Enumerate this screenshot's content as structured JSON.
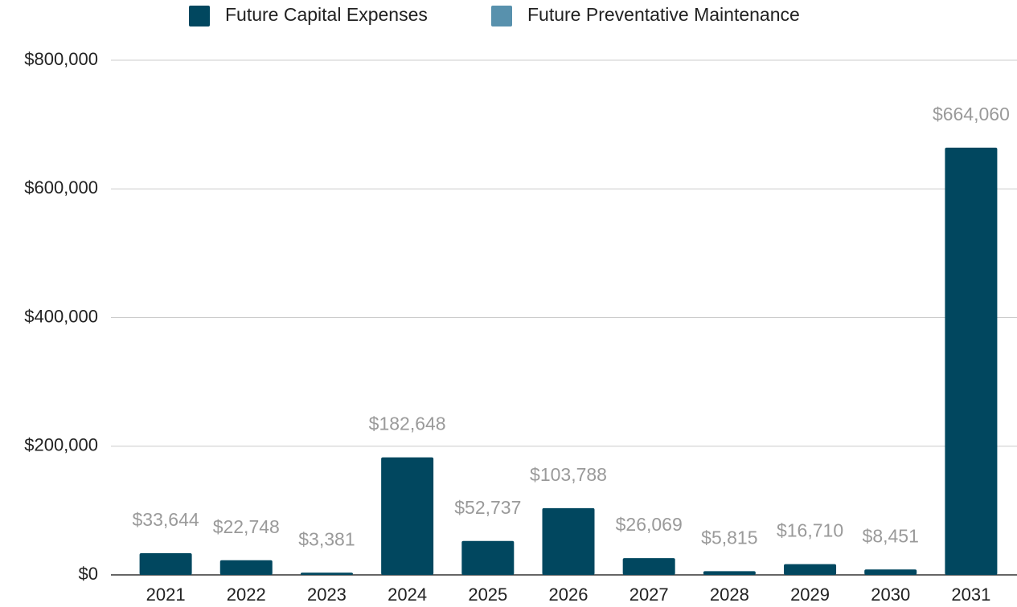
{
  "chart_data": {
    "type": "bar",
    "stacked": true,
    "categories": [
      "2021",
      "2022",
      "2023",
      "2024",
      "2025",
      "2026",
      "2027",
      "2028",
      "2029",
      "2030",
      "2031"
    ],
    "series": [
      {
        "name": "Future Capital Expenses",
        "color": "#01475f",
        "values": [
          33644,
          22748,
          3381,
          182648,
          52737,
          103788,
          26069,
          5815,
          16710,
          8451,
          664060
        ],
        "value_labels": [
          "$33,644",
          "$22,748",
          "$3,381",
          "$182,648",
          "$52,737",
          "$103,788",
          "$26,069",
          "$5,815",
          "$16,710",
          "$8,451",
          "$664,060"
        ]
      },
      {
        "name": "Future Preventative Maintenance",
        "color": "#5891ad",
        "values": [
          0,
          0,
          0,
          0,
          0,
          0,
          0,
          0,
          0,
          0,
          0
        ]
      }
    ],
    "ylim": [
      0,
      800000
    ],
    "yticks": [
      {
        "value": 0,
        "label": "$0"
      },
      {
        "value": 200000,
        "label": "$200,000"
      },
      {
        "value": 400000,
        "label": "$400,000"
      },
      {
        "value": 600000,
        "label": "$600,000"
      },
      {
        "value": 800000,
        "label": "$800,000"
      }
    ],
    "grid": true,
    "legend": "top"
  }
}
